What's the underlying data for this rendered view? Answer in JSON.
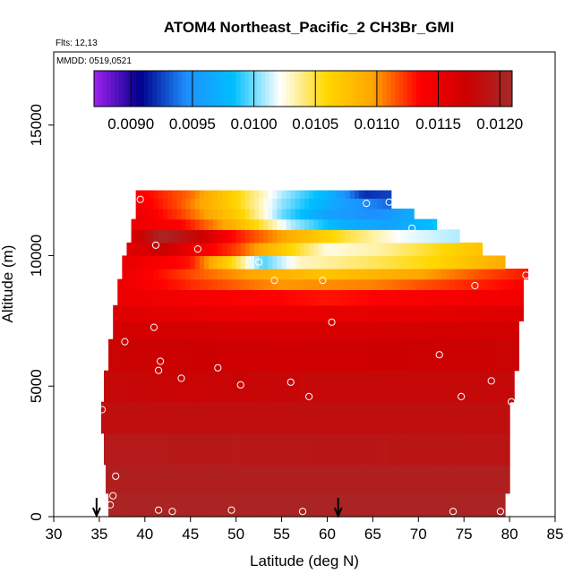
{
  "chart_data": {
    "type": "heatmap",
    "title": "ATOM4 Northeast_Pacific_2 CH3Br_GMI",
    "notes": [
      "Flts: 12,13",
      "MMDD: 0519,0521"
    ],
    "xlabel": "Latitude (deg N)",
    "ylabel": "Altitude (m)",
    "xlim": [
      30,
      85
    ],
    "ylim": [
      0,
      17800
    ],
    "x_ticks": [
      30,
      35,
      40,
      45,
      50,
      55,
      60,
      65,
      70,
      75,
      80,
      85
    ],
    "y_ticks": [
      0,
      5000,
      10000,
      15000
    ],
    "grid": false,
    "legend": "top-inside",
    "colorbar": {
      "range": [
        0.0087,
        0.0121
      ],
      "ticks": [
        "0.0090",
        "0.0095",
        "0.0100",
        "0.0105",
        "0.0110",
        "0.0115",
        "0.0120"
      ],
      "colors": [
        "#a020f0",
        "#00008b",
        "#1e90ff",
        "#00bfff",
        "#ffffff",
        "#ffd700",
        "#ffa500",
        "#ff0000",
        "#cd0000",
        "#a52a2a"
      ]
    },
    "field_rows": [
      {
        "alt_bottom": 0,
        "alt_top": 900,
        "lat_min": 36.0,
        "lat_max": 79.5,
        "values": [
          [
            36,
            0.01205
          ],
          [
            80,
            0.01205
          ]
        ]
      },
      {
        "alt_bottom": 900,
        "alt_top": 2000,
        "lat_min": 35.7,
        "lat_max": 80.0,
        "values": [
          [
            36,
            0.012
          ],
          [
            80,
            0.012
          ]
        ]
      },
      {
        "alt_bottom": 2000,
        "alt_top": 3200,
        "lat_min": 35.5,
        "lat_max": 80.0,
        "values": [
          [
            36,
            0.01195
          ],
          [
            80,
            0.0119
          ]
        ]
      },
      {
        "alt_bottom": 3200,
        "alt_top": 4400,
        "lat_min": 35.2,
        "lat_max": 80.0,
        "values": [
          [
            36,
            0.01185
          ],
          [
            80,
            0.01185
          ]
        ]
      },
      {
        "alt_bottom": 4400,
        "alt_top": 5600,
        "lat_min": 35.5,
        "lat_max": 80.5,
        "values": [
          [
            36,
            0.0118
          ],
          [
            45,
            0.01175
          ],
          [
            60,
            0.0118
          ],
          [
            80,
            0.0118
          ]
        ]
      },
      {
        "alt_bottom": 5600,
        "alt_top": 6800,
        "lat_min": 36.0,
        "lat_max": 81.0,
        "values": [
          [
            36,
            0.01175
          ],
          [
            55,
            0.0117
          ],
          [
            81,
            0.01175
          ]
        ]
      },
      {
        "alt_bottom": 6800,
        "alt_top": 7500,
        "lat_min": 36.5,
        "lat_max": 81.0,
        "values": [
          [
            36,
            0.01168
          ],
          [
            60,
            0.01165
          ],
          [
            81,
            0.01168
          ]
        ]
      },
      {
        "alt_bottom": 7500,
        "alt_top": 8100,
        "lat_min": 36.5,
        "lat_max": 81.5,
        "values": [
          [
            36,
            0.0116
          ],
          [
            50,
            0.0115
          ],
          [
            70,
            0.01155
          ],
          [
            81,
            0.0116
          ]
        ]
      },
      {
        "alt_bottom": 8100,
        "alt_top": 8700,
        "lat_min": 37.0,
        "lat_max": 81.5,
        "values": [
          [
            37,
            0.0115
          ],
          [
            48,
            0.0114
          ],
          [
            60,
            0.0113
          ],
          [
            72,
            0.0114
          ],
          [
            81,
            0.01145
          ]
        ]
      },
      {
        "alt_bottom": 8700,
        "alt_top": 9100,
        "lat_min": 37.0,
        "lat_max": 81.5,
        "values": [
          [
            37,
            0.0115
          ],
          [
            45,
            0.01125
          ],
          [
            55,
            0.011
          ],
          [
            65,
            0.01105
          ],
          [
            75,
            0.01125
          ],
          [
            81,
            0.01135
          ]
        ]
      },
      {
        "alt_bottom": 9100,
        "alt_top": 9500,
        "lat_min": 37.5,
        "lat_max": 82.0,
        "values": [
          [
            37,
            0.0115
          ],
          [
            47,
            0.0111
          ],
          [
            55,
            0.01085
          ],
          [
            60,
            0.01075
          ],
          [
            70,
            0.01095
          ],
          [
            78,
            0.0112
          ],
          [
            82,
            0.0113
          ]
        ]
      },
      {
        "alt_bottom": 9500,
        "alt_top": 10000,
        "lat_min": 37.5,
        "lat_max": 79.5,
        "values": [
          [
            38,
            0.0115
          ],
          [
            45,
            0.0113
          ],
          [
            50,
            0.0105
          ],
          [
            53,
            0.00995
          ],
          [
            57,
            0.0103
          ],
          [
            65,
            0.01045
          ],
          [
            72,
            0.0106
          ],
          [
            79,
            0.0109
          ]
        ]
      },
      {
        "alt_bottom": 10000,
        "alt_top": 10500,
        "lat_min": 38.0,
        "lat_max": 77.0,
        "values": [
          [
            38,
            0.01155
          ],
          [
            42,
            0.01175
          ],
          [
            45,
            0.0115
          ],
          [
            50,
            0.0112
          ],
          [
            56,
            0.0106
          ],
          [
            60,
            0.01025
          ],
          [
            66,
            0.01035
          ],
          [
            72,
            0.01055
          ],
          [
            77,
            0.01075
          ]
        ]
      },
      {
        "alt_bottom": 10500,
        "alt_top": 11000,
        "lat_min": 38.5,
        "lat_max": 74.5,
        "values": [
          [
            38,
            0.01155
          ],
          [
            42,
            0.01205
          ],
          [
            46,
            0.01175
          ],
          [
            50,
            0.0113
          ],
          [
            56,
            0.0109
          ],
          [
            62,
            0.0105
          ],
          [
            68,
            0.0102
          ],
          [
            74,
            0.0101
          ]
        ]
      },
      {
        "alt_bottom": 11000,
        "alt_top": 11400,
        "lat_min": 38.5,
        "lat_max": 72.0,
        "values": [
          [
            38,
            0.0115
          ],
          [
            44,
            0.01135
          ],
          [
            50,
            0.01085
          ],
          [
            56,
            0.0101
          ],
          [
            62,
            0.0097
          ],
          [
            67,
            0.0096
          ],
          [
            72,
            0.00985
          ]
        ]
      },
      {
        "alt_bottom": 11400,
        "alt_top": 11800,
        "lat_min": 39.0,
        "lat_max": 69.5,
        "values": [
          [
            39,
            0.0115
          ],
          [
            44,
            0.0112
          ],
          [
            50,
            0.0107
          ],
          [
            55,
            0.01
          ],
          [
            60,
            0.0096
          ],
          [
            65,
            0.00945
          ],
          [
            69,
            0.00965
          ]
        ]
      },
      {
        "alt_bottom": 11800,
        "alt_top": 12200,
        "lat_min": 39.0,
        "lat_max": 67.0,
        "values": [
          [
            39,
            0.01145
          ],
          [
            44,
            0.01115
          ],
          [
            50,
            0.0106
          ],
          [
            55,
            0.01005
          ],
          [
            60,
            0.0097
          ],
          [
            64,
            0.00945
          ],
          [
            67,
            0.00935
          ]
        ]
      },
      {
        "alt_bottom": 12200,
        "alt_top": 12500,
        "lat_min": 39.0,
        "lat_max": 67.0,
        "values": [
          [
            39,
            0.0114
          ],
          [
            45,
            0.0111
          ],
          [
            50,
            0.0106
          ],
          [
            55,
            0.0101
          ],
          [
            60,
            0.00975
          ],
          [
            64,
            0.0092
          ],
          [
            67,
            0.00925
          ]
        ]
      }
    ],
    "observations": [
      [
        35.3,
        4100
      ],
      [
        36.2,
        450
      ],
      [
        36.5,
        800
      ],
      [
        36.8,
        1550
      ],
      [
        37.8,
        6700
      ],
      [
        39.5,
        12150
      ],
      [
        41.0,
        7250
      ],
      [
        41.2,
        10400
      ],
      [
        41.5,
        250
      ],
      [
        41.5,
        5600
      ],
      [
        41.7,
        5950
      ],
      [
        43.0,
        200
      ],
      [
        44.0,
        5300
      ],
      [
        45.8,
        10250
      ],
      [
        48.0,
        5700
      ],
      [
        49.5,
        250
      ],
      [
        50.5,
        5050
      ],
      [
        52.5,
        9750
      ],
      [
        54.2,
        9050
      ],
      [
        56.0,
        5150
      ],
      [
        57.3,
        200
      ],
      [
        58.0,
        4600
      ],
      [
        59.5,
        9050
      ],
      [
        60.5,
        7450
      ],
      [
        64.3,
        12000
      ],
      [
        66.8,
        12050
      ],
      [
        69.3,
        11050
      ],
      [
        72.3,
        6200
      ],
      [
        73.8,
        200
      ],
      [
        74.7,
        4600
      ],
      [
        76.2,
        8850
      ],
      [
        78.0,
        5200
      ],
      [
        79.0,
        200
      ],
      [
        80.2,
        4400
      ],
      [
        81.8,
        9250
      ]
    ],
    "arrows_lat": [
      34.7,
      61.2
    ]
  }
}
